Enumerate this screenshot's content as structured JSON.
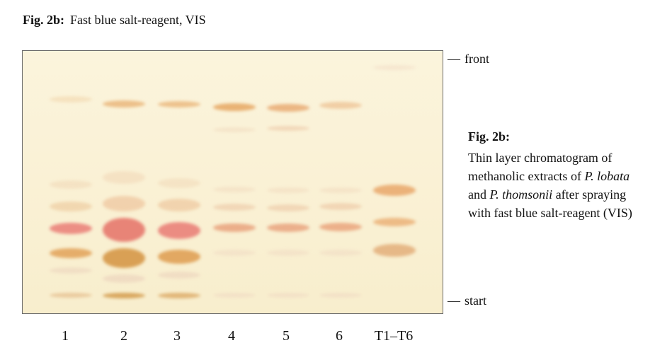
{
  "header": {
    "label": "Fig. 2b:",
    "text": "Fast blue salt-reagent, VIS"
  },
  "markers": {
    "front": "front",
    "start": "start",
    "dash": "—"
  },
  "caption": {
    "title": "Fig. 2b:",
    "line1": "Thin layer chromatogram of",
    "line2_pre": "methanolic extracts of ",
    "species1": "P. lobata",
    "line3_pre": "and ",
    "species2": "P. thomsonii",
    "line3_post": " after spraying",
    "line4": "with fast blue salt-reagent (VIS)"
  },
  "lanes": [
    {
      "label": "1"
    },
    {
      "label": "2"
    },
    {
      "label": "3"
    },
    {
      "label": "4"
    },
    {
      "label": "5"
    },
    {
      "label": "6"
    },
    {
      "label": "T1–T6"
    }
  ],
  "colors": {
    "plate_background": "#faf1d5",
    "band_pink_red": "#ec8e84",
    "band_orange": "#e5ad6a",
    "band_pale_orange": "#efc58c"
  }
}
